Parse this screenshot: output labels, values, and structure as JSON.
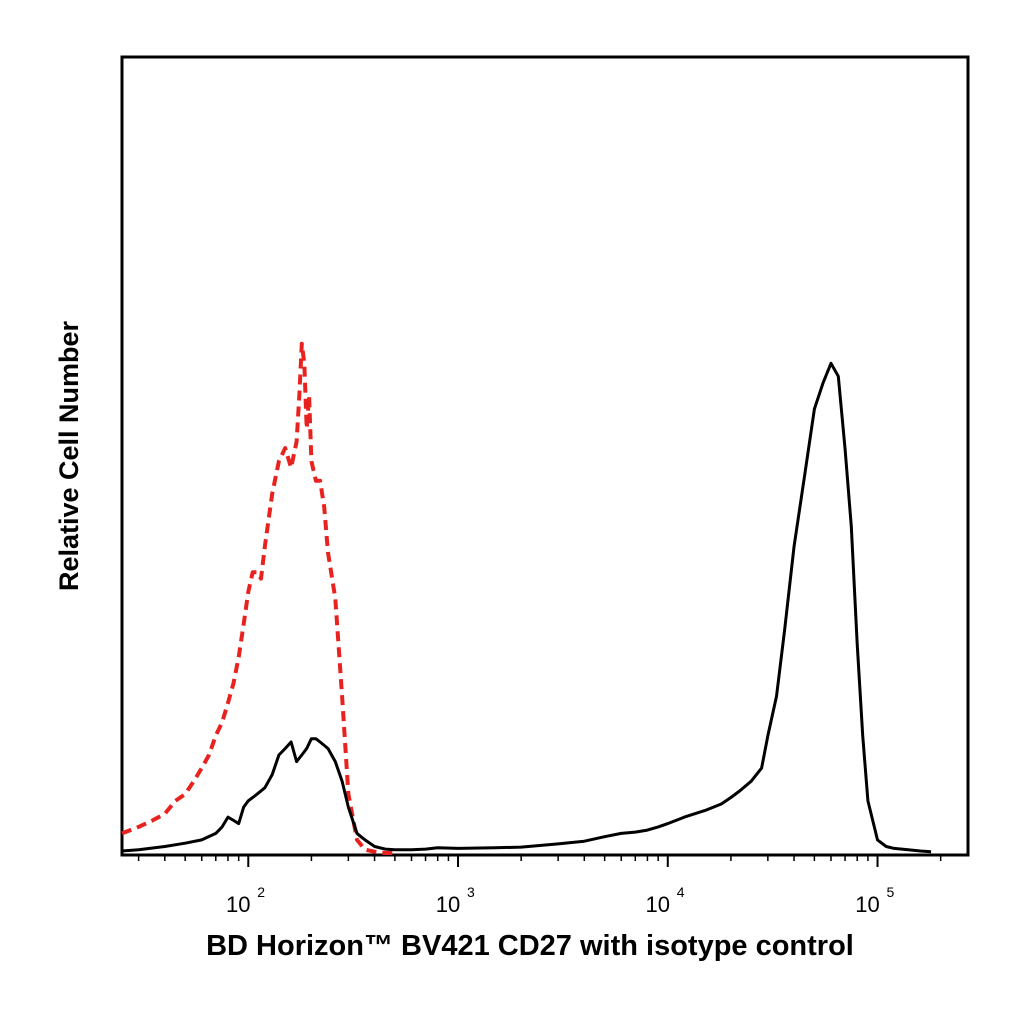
{
  "chart_data": {
    "type": "line",
    "title": "",
    "xlabel": "BD Horizon™ BV421 CD27 with isotype control",
    "ylabel": "Relative Cell Number",
    "x_scale": "log",
    "xlim": [
      25,
      270000
    ],
    "ylim": [
      0,
      100
    ],
    "grid": false,
    "legend": "none",
    "x_ticks": [
      {
        "value": 100,
        "base": "10",
        "exp": "2"
      },
      {
        "value": 1000,
        "base": "10",
        "exp": "3"
      },
      {
        "value": 10000,
        "base": "10",
        "exp": "4"
      },
      {
        "value": 100000,
        "base": "10",
        "exp": "5"
      }
    ],
    "series": [
      {
        "color": "#e8231f",
        "style": "dashed",
        "x": [
          25,
          30,
          35,
          40,
          45,
          50,
          55,
          60,
          65,
          70,
          75,
          80,
          85,
          90,
          95,
          100,
          105,
          110,
          115,
          120,
          130,
          140,
          150,
          160,
          170,
          175,
          180,
          185,
          190,
          195,
          200,
          210,
          220,
          230,
          240,
          260,
          280,
          300,
          330,
          360,
          400,
          450,
          500
        ],
        "y": [
          3,
          4,
          5,
          6,
          8,
          9,
          11,
          13,
          15,
          18,
          20,
          23,
          26,
          30,
          35,
          40,
          43,
          43,
          42,
          47,
          55,
          60,
          62,
          59,
          63,
          70,
          78,
          75,
          65,
          70,
          60,
          57,
          57,
          53,
          46,
          39,
          24,
          9,
          2,
          0.5,
          0.2,
          0,
          0
        ]
      },
      {
        "color": "#000000",
        "style": "solid",
        "x": [
          25,
          30,
          40,
          50,
          60,
          70,
          75,
          80,
          85,
          90,
          95,
          100,
          110,
          120,
          130,
          140,
          150,
          160,
          170,
          180,
          190,
          200,
          210,
          220,
          240,
          260,
          280,
          300,
          330,
          360,
          400,
          450,
          500,
          600,
          700,
          800,
          1000,
          1500,
          2000,
          3000,
          4000,
          5000,
          6000,
          7000,
          8000,
          9000,
          10000,
          12000,
          15000,
          18000,
          20000,
          22000,
          25000,
          28000,
          30000,
          33000,
          36000,
          40000,
          45000,
          50000,
          55000,
          60000,
          65000,
          70000,
          75000,
          80000,
          85000,
          90000,
          100000,
          110000,
          120000,
          140000,
          160000,
          180000
        ],
        "y": [
          0.3,
          0.5,
          1,
          1.5,
          2,
          3,
          4,
          5.5,
          5,
          4.5,
          7,
          8,
          9,
          10,
          12,
          15,
          16,
          17,
          14,
          15,
          16,
          17.5,
          17.5,
          17,
          16,
          14,
          11,
          7,
          3,
          2,
          1,
          0.6,
          0.5,
          0.5,
          0.6,
          0.8,
          0.7,
          0.8,
          0.9,
          1.4,
          1.8,
          2.5,
          3,
          3.2,
          3.5,
          4,
          4.5,
          5.5,
          6.5,
          7.5,
          8.5,
          9.5,
          11,
          13,
          18,
          24,
          34,
          47,
          58,
          68,
          72,
          75,
          73,
          62,
          50,
          32,
          18,
          8,
          2,
          1,
          0.7,
          0.5,
          0.3,
          0.2
        ]
      }
    ]
  }
}
